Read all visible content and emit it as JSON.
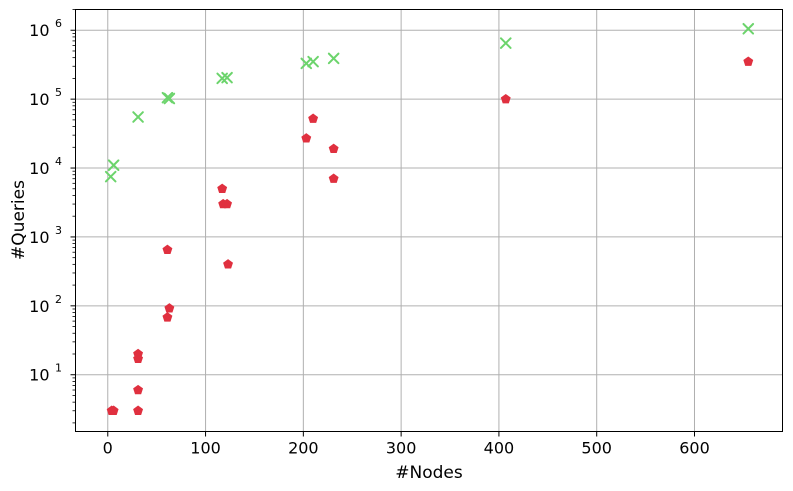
{
  "chart_data": {
    "type": "scatter",
    "title": "",
    "xlabel": "#Nodes",
    "ylabel": "#Queries",
    "x_scale": "linear",
    "y_scale": "log",
    "xlim": [
      -33,
      690
    ],
    "ylim": [
      1.5,
      2000000
    ],
    "x_ticks": [
      0,
      100,
      200,
      300,
      400,
      500,
      600
    ],
    "x_tick_labels": [
      "0",
      "100",
      "200",
      "300",
      "400",
      "500",
      "600"
    ],
    "y_ticks": [
      10,
      100,
      1000,
      10000,
      100000,
      1000000
    ],
    "y_tick_labels": [
      {
        "base": "10",
        "exp": "1"
      },
      {
        "base": "10",
        "exp": "2"
      },
      {
        "base": "10",
        "exp": "3"
      },
      {
        "base": "10",
        "exp": "4"
      },
      {
        "base": "10",
        "exp": "5"
      },
      {
        "base": "10",
        "exp": "6"
      }
    ],
    "grid": true,
    "series": [
      {
        "marker": "x",
        "color": "#6cd46c",
        "points": [
          [
            3,
            7500
          ],
          [
            6,
            11000
          ],
          [
            31,
            55000
          ],
          [
            61,
            105000
          ],
          [
            63,
            102000
          ],
          [
            117,
            200000
          ],
          [
            122,
            205000
          ],
          [
            203,
            330000
          ],
          [
            210,
            350000
          ],
          [
            231,
            390000
          ],
          [
            407,
            650000
          ],
          [
            655,
            1050000
          ]
        ]
      },
      {
        "marker": "pentagon",
        "color": "#e0303f",
        "points": [
          [
            4,
            3
          ],
          [
            6,
            3
          ],
          [
            31,
            3
          ],
          [
            31,
            6
          ],
          [
            31,
            17
          ],
          [
            31,
            20
          ],
          [
            61,
            650
          ],
          [
            61,
            68
          ],
          [
            63,
            92
          ],
          [
            117,
            5000
          ],
          [
            118,
            3000
          ],
          [
            122,
            3000
          ],
          [
            123,
            400
          ],
          [
            203,
            27000
          ],
          [
            210,
            52000
          ],
          [
            231,
            19000
          ],
          [
            231,
            7000
          ],
          [
            407,
            100000
          ],
          [
            655,
            350000
          ]
        ]
      }
    ]
  }
}
